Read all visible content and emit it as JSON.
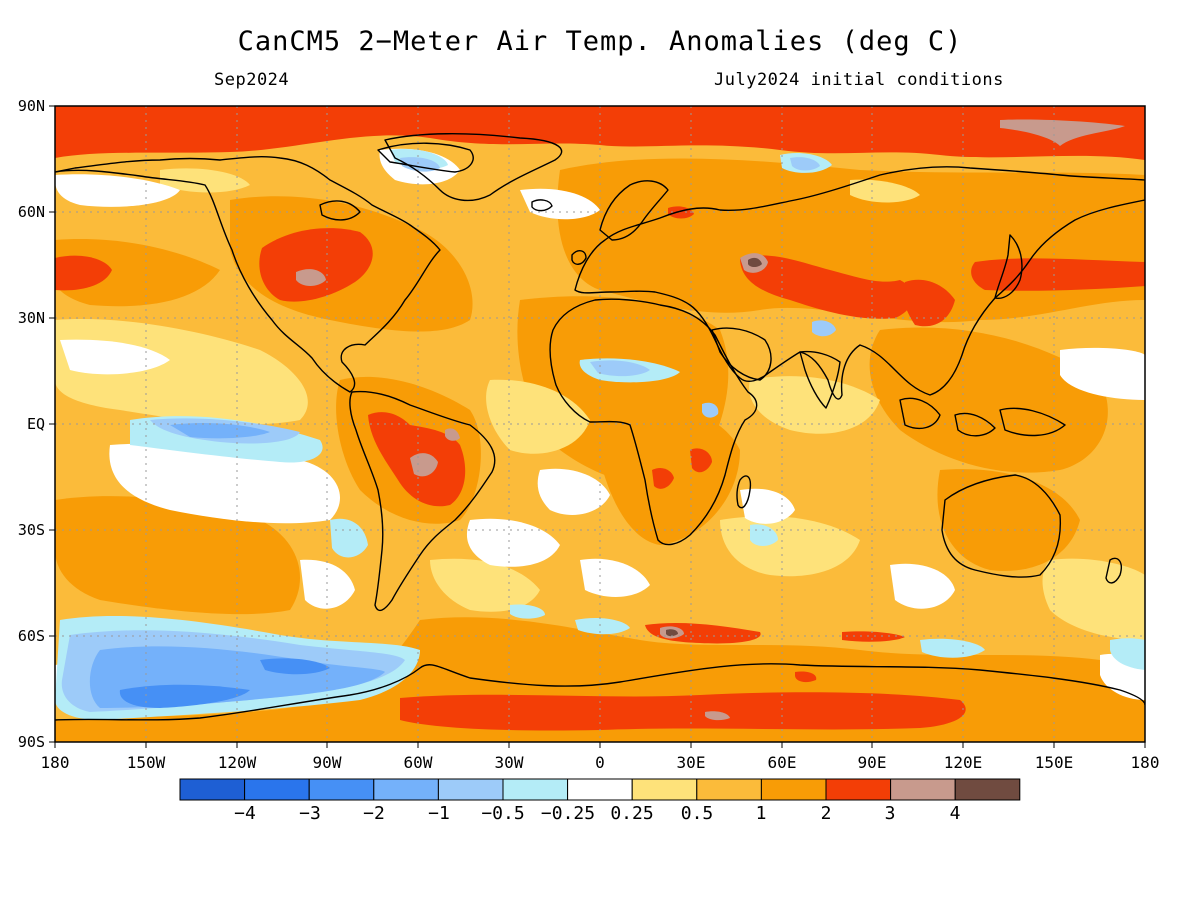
{
  "title": "CanCM5 2−Meter Air Temp. Anomalies (deg C)",
  "subtitle_left": "Sep2024",
  "subtitle_right": "July2024 initial conditions",
  "lat_labels": [
    "90N",
    "60N",
    "30N",
    "EQ",
    "30S",
    "60S",
    "90S"
  ],
  "lon_labels": [
    "180",
    "150W",
    "120W",
    "90W",
    "60W",
    "30W",
    "0",
    "30E",
    "60E",
    "90E",
    "120E",
    "150E",
    "180"
  ],
  "colorbar": {
    "colors": [
      "#1e5fd4",
      "#2a75ec",
      "#4690f5",
      "#74b1fa",
      "#9dcbf9",
      "#b4ecf7",
      "#ffffff",
      "#fee27a",
      "#fbbb3a",
      "#f89c06",
      "#f33e06",
      "#c89a8d",
      "#704b40"
    ],
    "labels": [
      "−4",
      "−3",
      "−2",
      "−1",
      "−0.5",
      "−0.25",
      "0.25",
      "0.5",
      "1",
      "2",
      "3",
      "4"
    ]
  }
}
